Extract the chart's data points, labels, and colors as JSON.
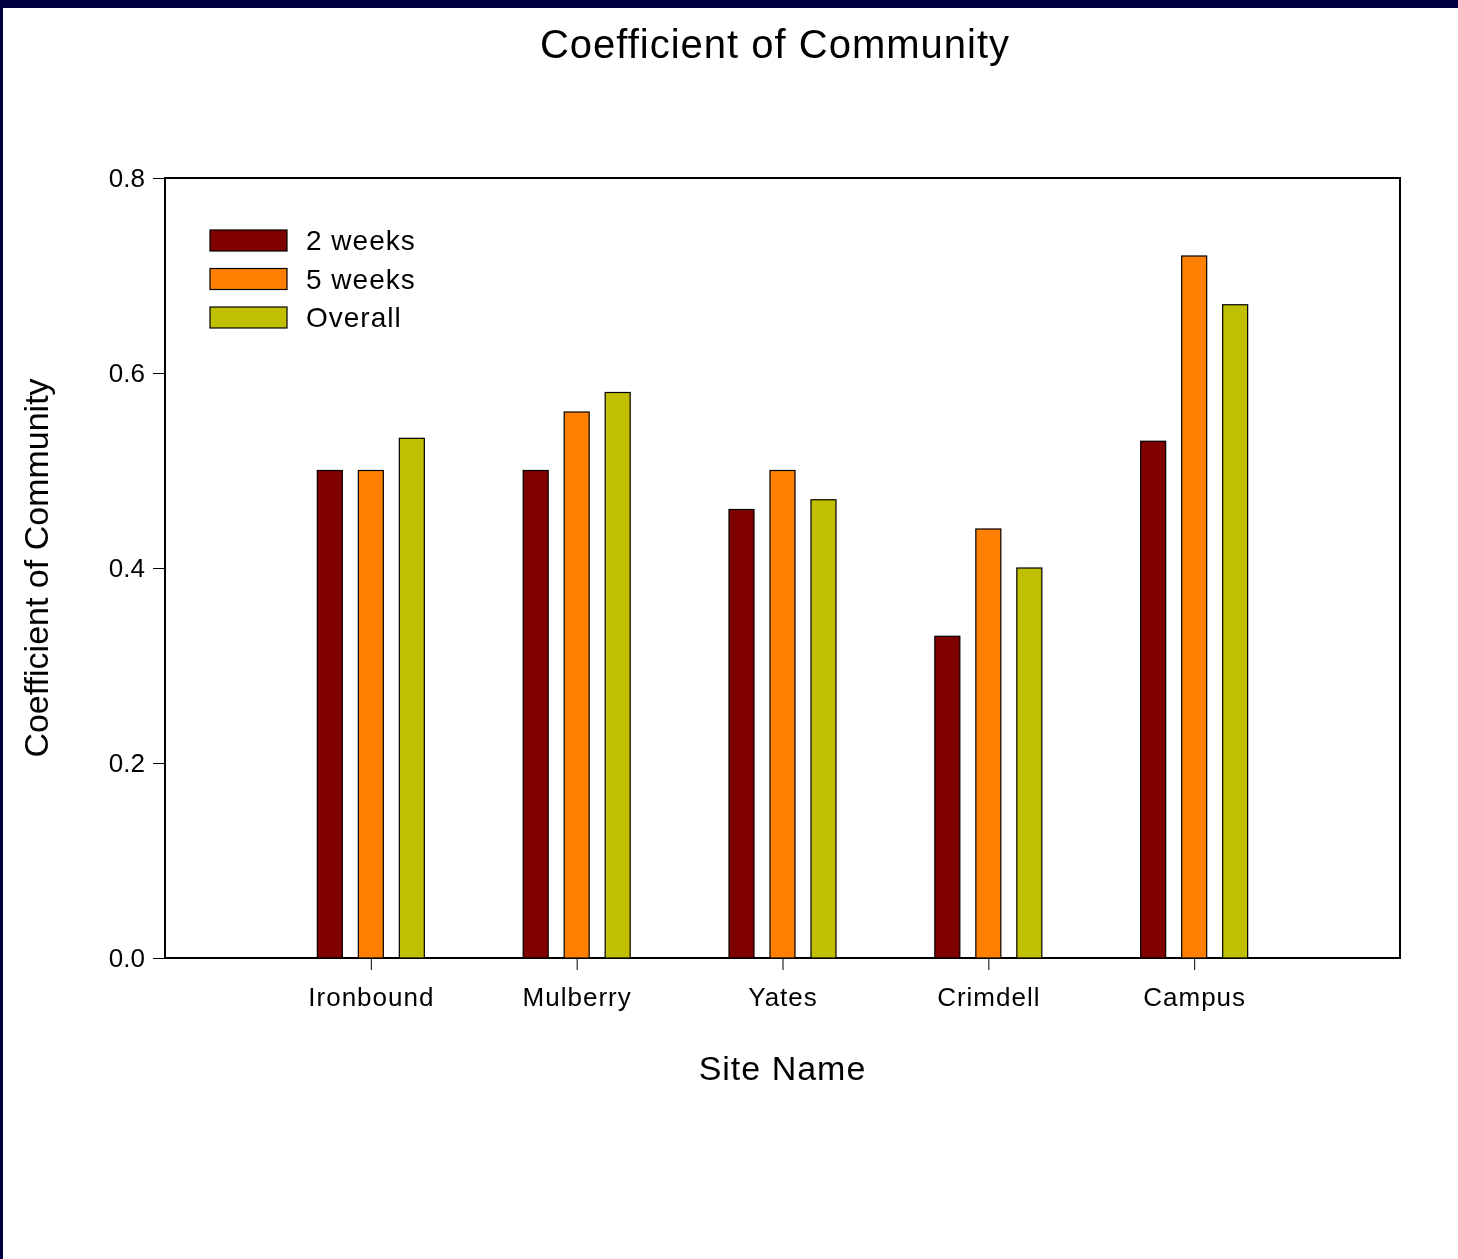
{
  "chart_data": {
    "type": "bar",
    "title": "Coefficient of Community",
    "xlabel": "Site Name",
    "ylabel": "Coefficient of Community",
    "categories": [
      "Ironbound",
      "Mulberry",
      "Yates",
      "Crimdell",
      "Campus"
    ],
    "series": [
      {
        "name": "2 weeks",
        "color": "#800000",
        "values": [
          0.5,
          0.5,
          0.46,
          0.33,
          0.53
        ]
      },
      {
        "name": "5 weeks",
        "color": "#ff8000",
        "values": [
          0.5,
          0.56,
          0.5,
          0.44,
          0.72
        ]
      },
      {
        "name": "Overall",
        "color": "#c0c000",
        "values": [
          0.533,
          0.58,
          0.47,
          0.4,
          0.67
        ]
      }
    ],
    "ylim": [
      0,
      0.8
    ],
    "yticks": [
      {
        "value": 0,
        "label": "0.0"
      },
      0.2,
      0.4,
      0.6,
      0.8
    ],
    "legend": "top left",
    "grid": false
  }
}
